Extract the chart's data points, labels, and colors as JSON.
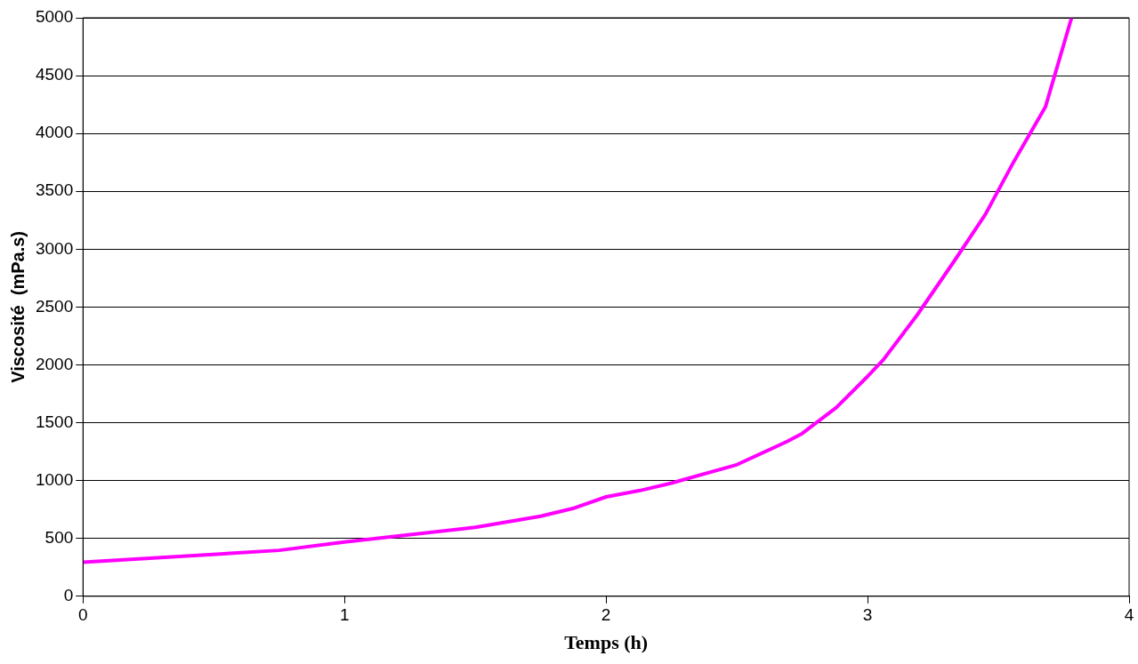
{
  "chart_data": {
    "type": "line",
    "xlabel": "Temps (h)",
    "ylabel": "Viscosité  (mPa.s)",
    "x": [
      0,
      0.75,
      1,
      1.5,
      1.75,
      1.88,
      2,
      2.13,
      2.25,
      2.5,
      2.69,
      2.75,
      2.88,
      3,
      3.06,
      3.19,
      3.33,
      3.45,
      3.56,
      3.68,
      3.78
    ],
    "series": [
      {
        "color": "#ff00ff",
        "values": [
          294,
          397,
          469,
          596,
          692,
          763,
          859,
          914,
          978,
          1137,
          1335,
          1407,
          1630,
          1900,
          2043,
          2432,
          2893,
          3299,
          3760,
          4229,
          5000
        ]
      }
    ],
    "xlim": [
      0,
      4
    ],
    "xticks": [
      0,
      1,
      2,
      3,
      4
    ],
    "ylim": [
      0,
      5000
    ],
    "yticks": [
      0,
      500,
      1000,
      1500,
      2000,
      2500,
      3000,
      3500,
      4000,
      4500,
      5000
    ],
    "grid": "y",
    "legend": false,
    "marker": "none",
    "line_style": "solid"
  }
}
